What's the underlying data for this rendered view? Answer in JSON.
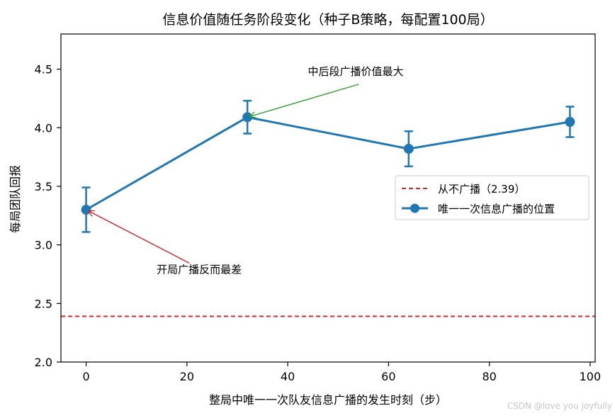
{
  "chart_data": {
    "type": "line",
    "title": "信息价值随任务阶段变化（种子B策略，每配置100局）",
    "xlabel": "整局中唯一一次队友信息广播的发生时刻（步）",
    "ylabel": "每局团队回报",
    "xlim": [
      -5,
      101
    ],
    "ylim": [
      2.0,
      4.8
    ],
    "xticks": [
      0,
      20,
      40,
      60,
      80,
      100
    ],
    "yticks": [
      2.0,
      2.5,
      3.0,
      3.5,
      4.0,
      4.5
    ],
    "xtick_labels": [
      "0",
      "20",
      "40",
      "60",
      "80",
      "100"
    ],
    "ytick_labels": [
      "2.0",
      "2.5",
      "3.0",
      "3.5",
      "4.0",
      "4.5"
    ],
    "series": [
      {
        "name": "唯一一次信息广播的位置",
        "color": "#1f77b4",
        "x": [
          0,
          32,
          64,
          96
        ],
        "y": [
          3.3,
          4.09,
          3.82,
          4.05
        ],
        "yerr": [
          0.19,
          0.14,
          0.15,
          0.13
        ]
      }
    ],
    "baseline": {
      "name": "从不广播（2.39）",
      "value": 2.39,
      "color": "#d62728",
      "style": "dashed"
    },
    "annotations": [
      {
        "text": "中后段广播价值最大",
        "point": [
          32,
          4.09
        ],
        "text_at": [
          44,
          4.45
        ],
        "color": "#2ca02c"
      },
      {
        "text": "开局广播反而最差",
        "point": [
          0,
          3.3
        ],
        "text_at": [
          14,
          2.76
        ],
        "color": "#d62728"
      }
    ],
    "legend_position": "center-right",
    "grid": false
  },
  "watermark": "CSDN @love you joyfully"
}
